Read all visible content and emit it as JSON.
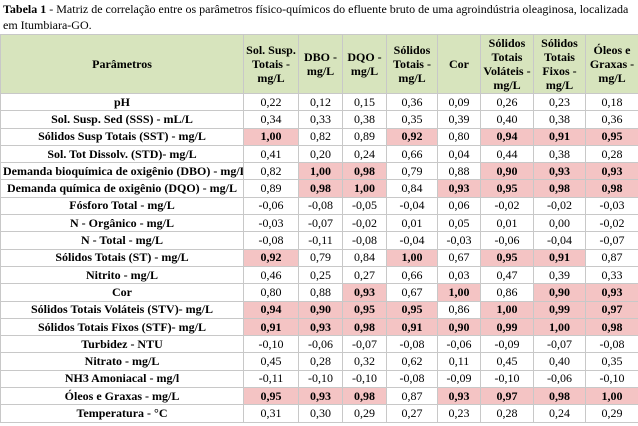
{
  "caption": {
    "label": "Tabela 1",
    "text": "- Matriz de correlação entre os parâmetros físico-químicos do efluente bruto de uma agroindústria oleaginosa, localizada em Itumbiara-GO."
  },
  "table": {
    "columns": [
      "Parâmetros",
      "Sol. Susp. Totais - mg/L",
      "DBO - mg/L",
      "DQO - mg/L",
      "Sólidos Totais - mg/L",
      "Cor",
      "Sólidos Totais Voláteis - mg/L",
      "Sólidos Totais Fixos - mg/L",
      "Óleos e Graxas - mg/L"
    ],
    "highlight_color": "#f4c4c4",
    "rows": [
      {
        "label": "pH",
        "values": [
          "0,22",
          "0,12",
          "0,15",
          "0,36",
          "0,09",
          "0,26",
          "0,23",
          "0,18"
        ],
        "highlight": []
      },
      {
        "label": "Sol. Susp. Sed (SSS) - mL/L",
        "values": [
          "0,34",
          "0,33",
          "0,38",
          "0,35",
          "0,39",
          "0,40",
          "0,38",
          "0,36"
        ],
        "highlight": []
      },
      {
        "label": "Sólidos Susp Totais (SST) - mg/L",
        "values": [
          "1,00",
          "0,82",
          "0,89",
          "0,92",
          "0,80",
          "0,94",
          "0,91",
          "0,95"
        ],
        "highlight": [
          0,
          3,
          5,
          6,
          7
        ]
      },
      {
        "label": "Sol. Tot Dissolv. (STD)- mg/L",
        "values": [
          "0,41",
          "0,20",
          "0,24",
          "0,66",
          "0,04",
          "0,44",
          "0,38",
          "0,28"
        ],
        "highlight": []
      },
      {
        "label": "Demanda bioquímica de oxigênio (DBO) - mg/L",
        "values": [
          "0,82",
          "1,00",
          "0,98",
          "0,79",
          "0,88",
          "0,90",
          "0,93",
          "0,93"
        ],
        "highlight": [
          1,
          2,
          5,
          6,
          7
        ]
      },
      {
        "label": "Demanda química de oxigênio (DQO) - mg/L",
        "values": [
          "0,89",
          "0,98",
          "1,00",
          "0,84",
          "0,93",
          "0,95",
          "0,98",
          "0,98"
        ],
        "highlight": [
          1,
          2,
          4,
          5,
          6,
          7
        ]
      },
      {
        "label": "Fósforo Total - mg/L",
        "values": [
          "-0,06",
          "-0,08",
          "-0,05",
          "-0,04",
          "0,06",
          "-0,02",
          "-0,02",
          "-0,03"
        ],
        "highlight": []
      },
      {
        "label": "N - Orgânico - mg/L",
        "values": [
          "-0,03",
          "-0,07",
          "-0,02",
          "0,01",
          "0,05",
          "0,01",
          "0,00",
          "-0,02"
        ],
        "highlight": []
      },
      {
        "label": "N - Total - mg/L",
        "values": [
          "-0,08",
          "-0,11",
          "-0,08",
          "-0,04",
          "-0,03",
          "-0,06",
          "-0,04",
          "-0,07"
        ],
        "highlight": []
      },
      {
        "label": "Sólidos Totais (ST) - mg/L",
        "values": [
          "0,92",
          "0,79",
          "0,84",
          "1,00",
          "0,67",
          "0,95",
          "0,91",
          "0,87"
        ],
        "highlight": [
          0,
          3,
          5,
          6
        ]
      },
      {
        "label": "Nitrito - mg/L",
        "values": [
          "0,46",
          "0,25",
          "0,27",
          "0,66",
          "0,03",
          "0,47",
          "0,39",
          "0,33"
        ],
        "highlight": []
      },
      {
        "label": "Cor",
        "values": [
          "0,80",
          "0,88",
          "0,93",
          "0,67",
          "1,00",
          "0,86",
          "0,90",
          "0,93"
        ],
        "highlight": [
          2,
          4,
          6,
          7
        ]
      },
      {
        "label": "Sólidos Totais Voláteis (STV)- mg/L",
        "values": [
          "0,94",
          "0,90",
          "0,95",
          "0,95",
          "0,86",
          "1,00",
          "0,99",
          "0,97"
        ],
        "highlight": [
          0,
          1,
          2,
          3,
          5,
          6,
          7
        ]
      },
      {
        "label": "Sólidos Totais Fixos (STF)- mg/L",
        "values": [
          "0,91",
          "0,93",
          "0,98",
          "0,91",
          "0,90",
          "0,99",
          "1,00",
          "0,98"
        ],
        "highlight": [
          0,
          1,
          2,
          3,
          4,
          5,
          6,
          7
        ]
      },
      {
        "label": "Turbidez - NTU",
        "values": [
          "-0,10",
          "-0,06",
          "-0,07",
          "-0,08",
          "-0,06",
          "-0,09",
          "-0,07",
          "-0,08"
        ],
        "highlight": []
      },
      {
        "label": "Nitrato - mg/L",
        "values": [
          "0,45",
          "0,28",
          "0,32",
          "0,62",
          "0,11",
          "0,45",
          "0,40",
          "0,35"
        ],
        "highlight": []
      },
      {
        "label": "NH3 Amoniacal - mg/l",
        "values": [
          "-0,11",
          "-0,10",
          "-0,10",
          "-0,08",
          "-0,09",
          "-0,10",
          "-0,06",
          "-0,10"
        ],
        "highlight": []
      },
      {
        "label": "Óleos e Graxas - mg/L",
        "values": [
          "0,95",
          "0,93",
          "0,98",
          "0,87",
          "0,93",
          "0,97",
          "0,98",
          "1,00"
        ],
        "highlight": [
          0,
          1,
          2,
          4,
          5,
          6,
          7
        ]
      },
      {
        "label": "Temperatura - °C",
        "values": [
          "0,31",
          "0,30",
          "0,29",
          "0,27",
          "0,23",
          "0,28",
          "0,24",
          "0,29"
        ],
        "highlight": []
      }
    ]
  }
}
